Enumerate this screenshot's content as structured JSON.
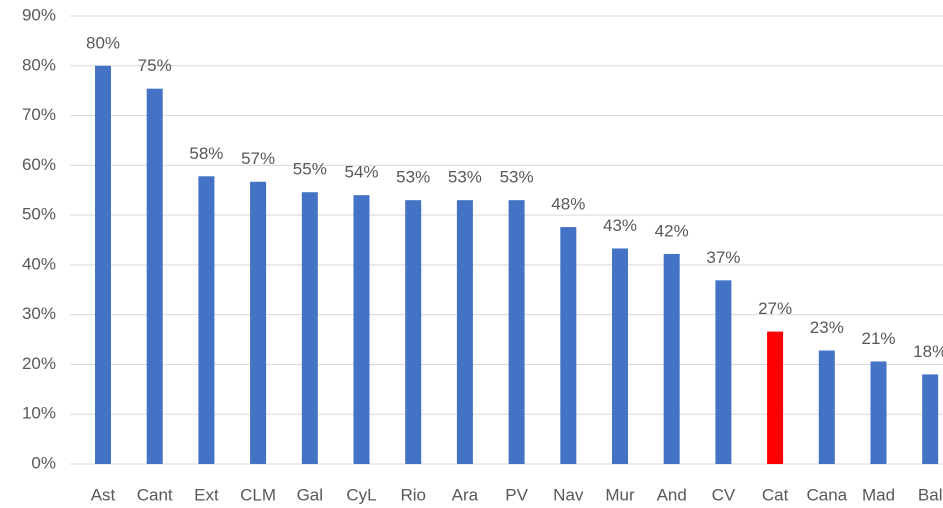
{
  "chart_data": {
    "type": "bar",
    "categories": [
      "Ast",
      "Cant",
      "Ext",
      "CLM",
      "Gal",
      "CyL",
      "Rio",
      "Ara",
      "PV",
      "Nav",
      "Mur",
      "And",
      "CV",
      "Cat",
      "Cana",
      "Mad",
      "Bal"
    ],
    "values": [
      80,
      75.4,
      57.8,
      56.7,
      54.6,
      54,
      53,
      53,
      53,
      47.6,
      43.3,
      42.2,
      36.9,
      26.6,
      22.8,
      20.6,
      18
    ],
    "value_labels": [
      "80%",
      "75%",
      "58%",
      "57%",
      "55%",
      "54%",
      "53%",
      "53%",
      "53%",
      "48%",
      "43%",
      "42%",
      "37%",
      "27%",
      "23%",
      "21%",
      "18%"
    ],
    "colors": [
      "#4472c4",
      "#4472c4",
      "#4472c4",
      "#4472c4",
      "#4472c4",
      "#4472c4",
      "#4472c4",
      "#4472c4",
      "#4472c4",
      "#4472c4",
      "#4472c4",
      "#4472c4",
      "#4472c4",
      "#ff0000",
      "#4472c4",
      "#4472c4",
      "#4472c4"
    ],
    "ylim": [
      0,
      90
    ],
    "yticks": [
      {
        "value": 0,
        "label": "0%"
      },
      {
        "value": 10,
        "label": "10%"
      },
      {
        "value": 20,
        "label": "20%"
      },
      {
        "value": 30,
        "label": "30%"
      },
      {
        "value": 40,
        "label": "40%"
      },
      {
        "value": 50,
        "label": "50%"
      },
      {
        "value": 60,
        "label": "60%"
      },
      {
        "value": 70,
        "label": "70%"
      },
      {
        "value": 80,
        "label": "80%"
      },
      {
        "value": 90,
        "label": "90%"
      }
    ],
    "grid": true
  }
}
